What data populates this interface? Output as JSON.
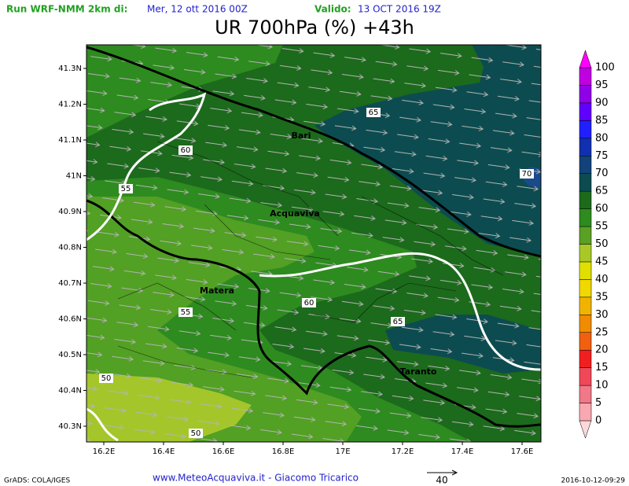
{
  "header": {
    "run": "Run WRF-NMM 2km di:",
    "run_date": "Mer, 12 ott 2016 00Z",
    "valid_label": "Valido:",
    "valid_date": "13 OCT 2016 19Z",
    "title": "UR 700hPa (%) +43h"
  },
  "map": {
    "lat_ticks": [
      "41.3N",
      "41.2N",
      "41.1N",
      "41N",
      "40.9N",
      "40.8N",
      "40.7N",
      "40.6N",
      "40.5N",
      "40.4N",
      "40.3N"
    ],
    "lon_ticks": [
      "16.2E",
      "16.4E",
      "16.6E",
      "16.8E",
      "17E",
      "17.2E",
      "17.4E",
      "17.6E"
    ],
    "cities": [
      "Bari",
      "Acquaviva",
      "Matera",
      "Taranto"
    ],
    "contour_labels": [
      65,
      70,
      60,
      55,
      60,
      65,
      55,
      50,
      50
    ]
  },
  "colorbar": {
    "levels": [
      0,
      5,
      10,
      15,
      20,
      25,
      30,
      35,
      40,
      45,
      50,
      55,
      60,
      65,
      70,
      75,
      80,
      85,
      90,
      95,
      100
    ],
    "colors": [
      "#fcd8d8",
      "#f8a8b0",
      "#f07888",
      "#f04858",
      "#f02020",
      "#f06010",
      "#f08c00",
      "#f0b400",
      "#f0d800",
      "#e0e000",
      "#a8c828",
      "#5aa024",
      "#2e8b1f",
      "#1c6a1c",
      "#0c4c50",
      "#12427a",
      "#1030b0",
      "#2020ff",
      "#6000ff",
      "#9000e8",
      "#c000e0",
      "#ff00ff"
    ]
  },
  "footer": {
    "grads": "GrADS: COLA/IGES",
    "credit": "www.MeteoAcquaviva.it - Giacomo Tricarico",
    "vector_ref": "40",
    "timestamp": "2016-10-12-09:29"
  }
}
